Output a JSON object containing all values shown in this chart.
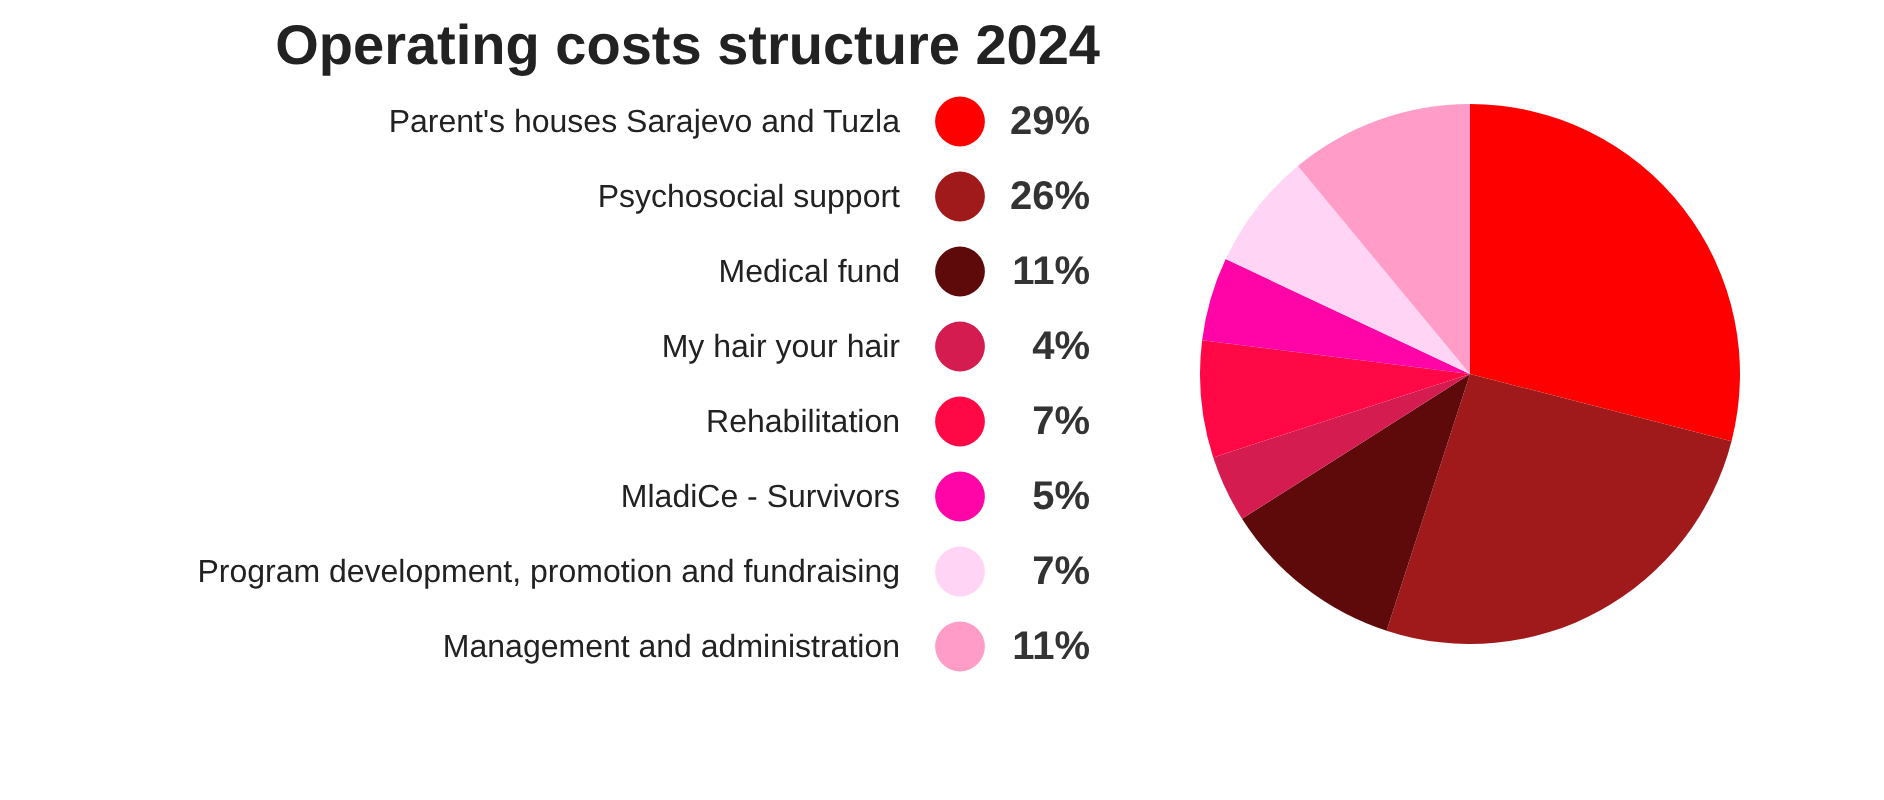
{
  "chart_data": {
    "type": "pie",
    "title": "Operating costs structure 2024",
    "categories": [
      "Parent's houses Sarajevo and Tuzla",
      "Psychosocial support",
      "Medical fund",
      "My hair your hair",
      "Rehabilitation",
      "MladiCe - Survivors",
      "Program development, promotion and fundraising",
      "Management and administration"
    ],
    "values": [
      29,
      26,
      11,
      4,
      7,
      5,
      7,
      11
    ],
    "value_labels": [
      "29%",
      "26%",
      "11%",
      "4%",
      "7%",
      "5%",
      "7%",
      "11%"
    ],
    "colors": [
      "#ff0000",
      "#a01a1c",
      "#5e0a0a",
      "#d41c50",
      "#ff0845",
      "#ff05a8",
      "#ffd4f4",
      "#ff9cc8"
    ],
    "legend": "left"
  }
}
